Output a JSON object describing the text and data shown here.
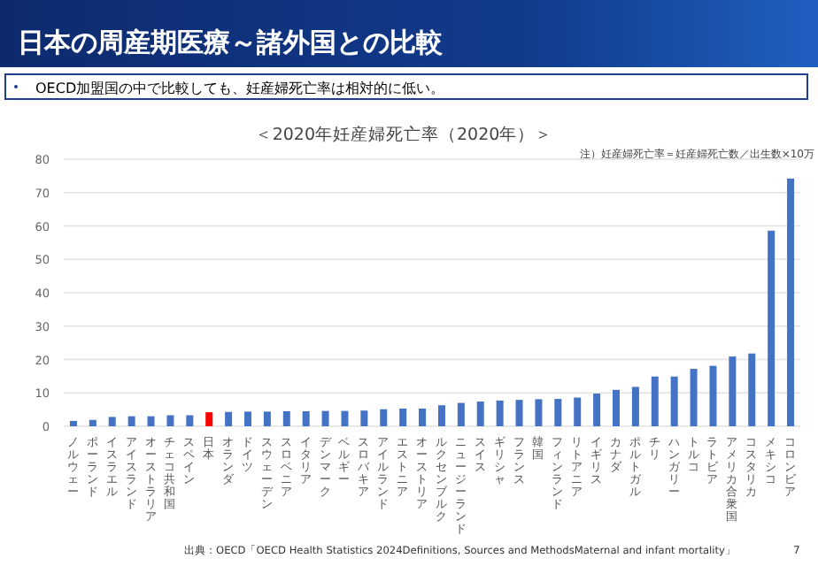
{
  "chart_data": {
    "type": "bar",
    "title": "＜2020年妊産婦死亡率（2020年）＞",
    "annotations": [
      "日本の周産期医療～諸外国との比較",
      "OECD加盟国の中で比較しても、妊産婦死亡率は相対的に低い。",
      "注）妊産婦死亡率＝妊産婦死亡数／出生数×10万",
      "出典：OECD「OECD Health Statistics 2024Definitions, Sources and MethodsMaternal and infant mortality」",
      "7"
    ],
    "categories": [
      "ノルウェー",
      "ポーランド",
      "イスラエル",
      "アイスランド",
      "オーストラリア",
      "チェコ共和国",
      "スペイン",
      "日本",
      "オランダ",
      "ドイツ",
      "スウェーデン",
      "スロベニア",
      "イタリア",
      "デンマーク",
      "ベルギー",
      "スロバキア",
      "アイルランド",
      "エストニア",
      "オーストリア",
      "ルクセンブルク",
      "ニュージーランド",
      "スイス",
      "ギリシャ",
      "フランス",
      "韓国",
      "フィンランド",
      "リトアニア",
      "イギリス",
      "カナダ",
      "ポルトガル",
      "チリ",
      "ハンガリー",
      "トルコ",
      "ラトビア",
      "アメリカ合衆国",
      "コスタリカ",
      "メキシコ",
      "コロンビア"
    ],
    "values": [
      1.6,
      1.9,
      2.8,
      3.0,
      3.0,
      3.3,
      3.3,
      4.2,
      4.3,
      4.4,
      4.4,
      4.5,
      4.5,
      4.6,
      4.6,
      4.7,
      5.1,
      5.3,
      5.3,
      6.3,
      7.0,
      7.4,
      7.7,
      7.9,
      8.1,
      8.2,
      8.6,
      9.8,
      10.9,
      11.8,
      14.9,
      14.9,
      17.2,
      18.1,
      20.9,
      21.8,
      58.6,
      74.2
    ],
    "colors": [
      "#4472c4",
      "#4472c4",
      "#4472c4",
      "#4472c4",
      "#4472c4",
      "#4472c4",
      "#4472c4",
      "#ff0000",
      "#4472c4",
      "#4472c4",
      "#4472c4",
      "#4472c4",
      "#4472c4",
      "#4472c4",
      "#4472c4",
      "#4472c4",
      "#4472c4",
      "#4472c4",
      "#4472c4",
      "#4472c4",
      "#4472c4",
      "#4472c4",
      "#4472c4",
      "#4472c4",
      "#4472c4",
      "#4472c4",
      "#4472c4",
      "#4472c4",
      "#4472c4",
      "#4472c4",
      "#4472c4",
      "#4472c4",
      "#4472c4",
      "#4472c4",
      "#4472c4",
      "#4472c4",
      "#4472c4",
      "#4472c4"
    ],
    "ylim": [
      0,
      80
    ],
    "yticks": [
      0,
      10,
      20,
      30,
      40,
      50,
      60,
      70,
      80
    ],
    "grid": "y"
  }
}
